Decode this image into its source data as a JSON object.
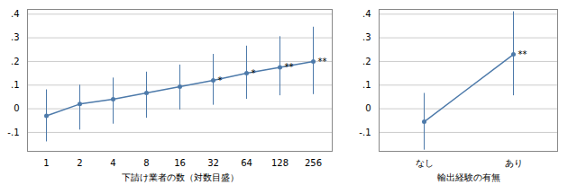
{
  "chart_data": [
    {
      "type": "line",
      "xlabel": "下請け業者の数（対数目盛）",
      "categories": [
        "1",
        "2",
        "4",
        "8",
        "16",
        "32",
        "64",
        "128",
        "256"
      ],
      "values": [
        -0.03,
        0.02,
        0.04,
        0.067,
        0.093,
        0.12,
        0.15,
        0.175,
        0.2
      ],
      "upper": [
        0.08,
        0.1,
        0.13,
        0.155,
        0.185,
        0.23,
        0.265,
        0.305,
        0.345
      ],
      "lower": [
        -0.14,
        -0.09,
        -0.065,
        -0.04,
        -0.005,
        0.015,
        0.04,
        0.055,
        0.06
      ],
      "annotations": [
        {
          "x": "32",
          "text": "*"
        },
        {
          "x": "64",
          "text": "*"
        },
        {
          "x": "128",
          "text": "**"
        },
        {
          "x": "256",
          "text": "**"
        }
      ],
      "ylim": [
        -0.18,
        0.42
      ],
      "yticks": [
        {
          "value": -0.1,
          "label": "-.1"
        },
        0,
        {
          "value": 0.1,
          "label": ".1"
        },
        {
          "value": 0.2,
          "label": ".2"
        },
        {
          "value": 0.3,
          "label": ".3"
        },
        {
          "value": 0.4,
          "label": ".4"
        }
      ],
      "color": "#4d7aaa",
      "marker": "circle",
      "grid": true
    },
    {
      "type": "line",
      "xlabel": "輸出経験の有無",
      "categories": [
        "なし",
        "あり"
      ],
      "values": [
        -0.055,
        0.23
      ],
      "upper": [
        0.065,
        0.41
      ],
      "lower": [
        -0.175,
        0.055
      ],
      "annotations": [
        {
          "x": "あり",
          "text": "**"
        }
      ],
      "ylim": [
        -0.18,
        0.42
      ],
      "yticks": [
        {
          "value": -0.1,
          "label": "-.1"
        },
        0,
        {
          "value": 0.1,
          "label": ".1"
        },
        {
          "value": 0.2,
          "label": ".2"
        },
        {
          "value": 0.3,
          "label": ".3"
        },
        {
          "value": 0.4,
          "label": ".4"
        }
      ],
      "color": "#4d7aaa",
      "marker": "circle",
      "grid": true
    }
  ]
}
